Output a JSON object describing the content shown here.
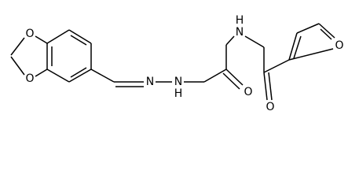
{
  "atoms": {
    "o_dioxole_top": "O",
    "o_dioxole_bottom": "O",
    "n_imine": "N",
    "n_hydrazide": "N",
    "h_hydrazide": "H",
    "o_carbonyl_hydrazide": "O",
    "n_amide": "N",
    "h_amide": "H",
    "o_carbonyl_amide": "O",
    "o_furan": "O"
  }
}
